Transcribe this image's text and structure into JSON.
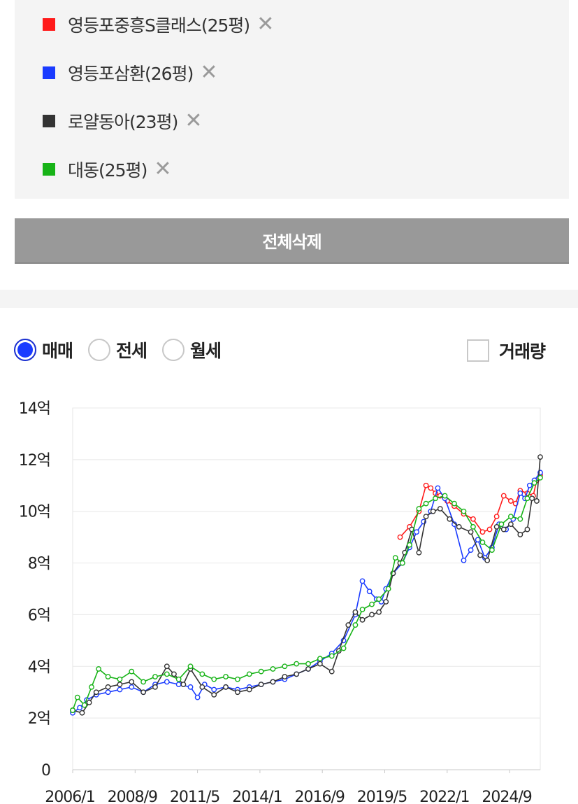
{
  "legend": {
    "items": [
      {
        "label": "영등포중흥S클래스(25평)",
        "color": "#ff1a1a",
        "remove_icon": "close-icon"
      },
      {
        "label": "영등포삼환(26평)",
        "color": "#1a3bff",
        "remove_icon": "close-icon"
      },
      {
        "label": "로얄동아(23평)",
        "color": "#333333",
        "remove_icon": "close-icon"
      },
      {
        "label": "대동(25평)",
        "color": "#17b317",
        "remove_icon": "close-icon"
      }
    ]
  },
  "delete_all_label": "전체삭제",
  "trade_type": {
    "options": [
      {
        "label": "매매",
        "checked": true
      },
      {
        "label": "전세",
        "checked": false
      },
      {
        "label": "월세",
        "checked": false
      }
    ]
  },
  "volume_toggle": {
    "label": "거래량",
    "checked": false
  },
  "chart_data": {
    "type": "line",
    "x_tick_labels": [
      "2006/1",
      "2008/9",
      "2011/5",
      "2014/1",
      "2016/9",
      "2019/5",
      "2022/1",
      "2024/9"
    ],
    "y_tick_labels": [
      "0",
      "2억",
      "4억",
      "6억",
      "8억",
      "10억",
      "12억",
      "14억"
    ],
    "y_unit": "억",
    "ylim": [
      0,
      14
    ],
    "xlim": [
      2006.0,
      2025.85
    ],
    "grid": true,
    "series": [
      {
        "name": "영등포중흥S클래스(25평)",
        "color": "#ff1a1a",
        "x": [
          2019.9,
          2020.3,
          2020.7,
          2021.0,
          2021.2,
          2021.4,
          2021.6,
          2021.9,
          2022.2,
          2022.6,
          2023.0,
          2023.4,
          2023.7,
          2024.0,
          2024.3,
          2024.6,
          2024.8,
          2025.0,
          2025.3,
          2025.55,
          2025.7,
          2025.85
        ],
        "y": [
          9.0,
          9.4,
          10.0,
          11.0,
          10.9,
          10.7,
          10.6,
          10.4,
          10.2,
          9.9,
          9.7,
          9.2,
          9.3,
          9.8,
          10.6,
          10.4,
          10.3,
          10.8,
          10.7,
          10.6,
          11.2,
          11.4
        ]
      },
      {
        "name": "영등포삼환(26평)",
        "color": "#1a3bff",
        "x": [
          2006.0,
          2006.3,
          2006.6,
          2007.0,
          2007.5,
          2008.0,
          2008.5,
          2009.0,
          2009.5,
          2010.0,
          2010.5,
          2011.0,
          2011.3,
          2011.6,
          2012.0,
          2012.5,
          2013.0,
          2013.5,
          2014.0,
          2014.5,
          2015.0,
          2015.5,
          2016.0,
          2016.5,
          2017.0,
          2017.5,
          2018.0,
          2018.3,
          2018.6,
          2018.9,
          2019.1,
          2019.3,
          2019.6,
          2020.0,
          2020.3,
          2020.6,
          2020.9,
          2021.2,
          2021.5,
          2021.8,
          2022.2,
          2022.6,
          2022.9,
          2023.2,
          2023.5,
          2023.8,
          2024.1,
          2024.4,
          2024.7,
          2025.0,
          2025.2,
          2025.4,
          2025.6,
          2025.85
        ],
        "y": [
          2.2,
          2.4,
          2.7,
          2.9,
          3.0,
          3.1,
          3.2,
          3.0,
          3.3,
          3.4,
          3.3,
          3.2,
          2.8,
          3.3,
          3.1,
          3.2,
          3.1,
          3.2,
          3.3,
          3.4,
          3.5,
          3.7,
          3.9,
          4.2,
          4.5,
          5.0,
          6.0,
          7.3,
          6.9,
          6.6,
          6.5,
          7.0,
          7.6,
          8.0,
          8.6,
          9.2,
          9.6,
          10.0,
          10.9,
          10.5,
          9.5,
          8.1,
          8.5,
          8.9,
          8.2,
          8.6,
          9.5,
          9.3,
          9.7,
          10.7,
          10.5,
          11.0,
          11.2,
          11.5
        ]
      },
      {
        "name": "로얄동아(23평)",
        "color": "#333333",
        "x": [
          2006.0,
          2006.4,
          2006.7,
          2007.0,
          2007.5,
          2008.0,
          2008.5,
          2009.0,
          2009.5,
          2010.0,
          2010.3,
          2010.7,
          2011.0,
          2011.5,
          2012.0,
          2012.5,
          2013.0,
          2013.5,
          2014.0,
          2014.5,
          2015.0,
          2015.5,
          2016.0,
          2016.5,
          2017.0,
          2017.3,
          2017.7,
          2018.0,
          2018.3,
          2018.7,
          2019.0,
          2019.3,
          2019.6,
          2019.9,
          2020.1,
          2020.4,
          2020.7,
          2021.0,
          2021.3,
          2021.6,
          2022.0,
          2022.4,
          2022.9,
          2023.3,
          2023.6,
          2024.0,
          2024.3,
          2024.6,
          2025.0,
          2025.3,
          2025.5,
          2025.7,
          2025.85
        ],
        "y": [
          2.3,
          2.2,
          2.6,
          3.0,
          3.2,
          3.3,
          3.4,
          3.0,
          3.2,
          4.0,
          3.7,
          3.3,
          3.9,
          3.2,
          2.9,
          3.2,
          3.0,
          3.1,
          3.3,
          3.4,
          3.6,
          3.7,
          3.9,
          4.1,
          3.8,
          4.6,
          5.6,
          6.1,
          5.8,
          6.0,
          6.1,
          6.5,
          7.6,
          8.0,
          8.4,
          9.3,
          8.4,
          9.8,
          10.0,
          10.1,
          9.7,
          9.4,
          9.2,
          8.3,
          8.1,
          9.4,
          9.3,
          9.5,
          9.1,
          9.3,
          10.5,
          10.4,
          12.1
        ]
      },
      {
        "name": "대동(25평)",
        "color": "#17b317",
        "x": [
          2006.0,
          2006.2,
          2006.5,
          2006.8,
          2007.1,
          2007.5,
          2008.0,
          2008.5,
          2009.0,
          2009.5,
          2010.0,
          2010.5,
          2011.0,
          2011.5,
          2012.0,
          2012.5,
          2013.0,
          2013.5,
          2014.0,
          2014.5,
          2015.0,
          2015.5,
          2016.0,
          2016.5,
          2017.0,
          2017.5,
          2018.0,
          2018.3,
          2018.7,
          2019.0,
          2019.4,
          2019.7,
          2020.0,
          2020.3,
          2020.7,
          2021.0,
          2021.4,
          2021.8,
          2022.2,
          2022.6,
          2023.0,
          2023.4,
          2023.8,
          2024.2,
          2024.6,
          2025.0,
          2025.3,
          2025.6,
          2025.85
        ],
        "y": [
          2.3,
          2.8,
          2.5,
          3.2,
          3.9,
          3.6,
          3.5,
          3.8,
          3.4,
          3.6,
          3.7,
          3.5,
          4.0,
          3.7,
          3.5,
          3.6,
          3.5,
          3.7,
          3.8,
          3.9,
          4.0,
          4.1,
          4.1,
          4.3,
          4.4,
          4.7,
          5.6,
          6.2,
          6.4,
          6.6,
          7.0,
          8.2,
          8.0,
          8.7,
          10.1,
          10.3,
          10.5,
          10.6,
          10.3,
          10.0,
          9.4,
          8.8,
          8.5,
          9.5,
          9.8,
          9.7,
          10.5,
          11.1,
          11.3
        ]
      }
    ]
  }
}
